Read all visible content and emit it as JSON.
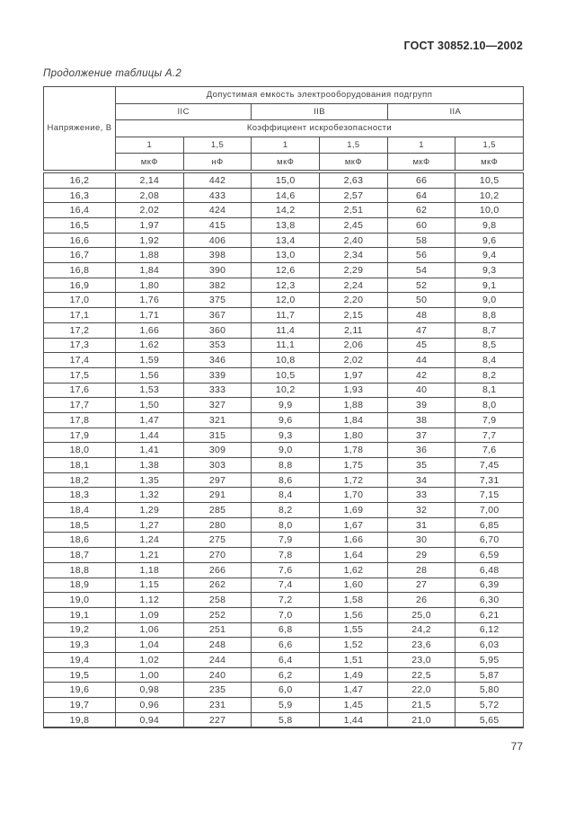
{
  "page": {
    "doc_number": "ГОСТ 30852.10—2002",
    "caption": "Продолжение таблицы А.2",
    "page_number": "77"
  },
  "colors": {
    "background": "#ffffff",
    "text": "#3b3b3b",
    "border": "#4d4d4d"
  },
  "table": {
    "voltage_header": "Напряжение, В",
    "span_header": "Допустимая емкость электрооборудования подгрупп",
    "groups": [
      "IIC",
      "IIB",
      "IIA"
    ],
    "coefficient_header": "Коэффициент искробезопасности",
    "coefficients": [
      "1",
      "1,5",
      "1",
      "1,5",
      "1",
      "1,5"
    ],
    "units": [
      "мкФ",
      "нФ",
      "мкФ",
      "мкФ",
      "мкФ",
      "мкФ"
    ],
    "rows": [
      [
        "16,2",
        "2,14",
        "442",
        "15,0",
        "2,63",
        "66",
        "10,5"
      ],
      [
        "16,3",
        "2,08",
        "433",
        "14,6",
        "2,57",
        "64",
        "10,2"
      ],
      [
        "16,4",
        "2,02",
        "424",
        "14,2",
        "2,51",
        "62",
        "10,0"
      ],
      [
        "16,5",
        "1,97",
        "415",
        "13,8",
        "2,45",
        "60",
        "9,8"
      ],
      [
        "16,6",
        "1,92",
        "406",
        "13,4",
        "2,40",
        "58",
        "9,6"
      ],
      [
        "16,7",
        "1,88",
        "398",
        "13,0",
        "2,34",
        "56",
        "9,4"
      ],
      [
        "16,8",
        "1,84",
        "390",
        "12,6",
        "2,29",
        "54",
        "9,3"
      ],
      [
        "16,9",
        "1,80",
        "382",
        "12,3",
        "2,24",
        "52",
        "9,1"
      ],
      [
        "17,0",
        "1,76",
        "375",
        "12,0",
        "2,20",
        "50",
        "9,0"
      ],
      [
        "17,1",
        "1,71",
        "367",
        "11,7",
        "2,15",
        "48",
        "8,8"
      ],
      [
        "17,2",
        "1,66",
        "360",
        "11,4",
        "2,11",
        "47",
        "8,7"
      ],
      [
        "17,3",
        "1,62",
        "353",
        "11,1",
        "2,06",
        "45",
        "8,5"
      ],
      [
        "17,4",
        "1,59",
        "346",
        "10,8",
        "2,02",
        "44",
        "8,4"
      ],
      [
        "17,5",
        "1,56",
        "339",
        "10,5",
        "1,97",
        "42",
        "8,2"
      ],
      [
        "17,6",
        "1,53",
        "333",
        "10,2",
        "1,93",
        "40",
        "8,1"
      ],
      [
        "17,7",
        "1,50",
        "327",
        "9,9",
        "1,88",
        "39",
        "8,0"
      ],
      [
        "17,8",
        "1,47",
        "321",
        "9,6",
        "1,84",
        "38",
        "7,9"
      ],
      [
        "17,9",
        "1,44",
        "315",
        "9,3",
        "1,80",
        "37",
        "7,7"
      ],
      [
        "18,0",
        "1,41",
        "309",
        "9,0",
        "1,78",
        "36",
        "7,6"
      ],
      [
        "18,1",
        "1,38",
        "303",
        "8,8",
        "1,75",
        "35",
        "7,45"
      ],
      [
        "18,2",
        "1,35",
        "297",
        "8,6",
        "1,72",
        "34",
        "7,31"
      ],
      [
        "18,3",
        "1,32",
        "291",
        "8,4",
        "1,70",
        "33",
        "7,15"
      ],
      [
        "18,4",
        "1,29",
        "285",
        "8,2",
        "1,69",
        "32",
        "7,00"
      ],
      [
        "18,5",
        "1,27",
        "280",
        "8,0",
        "1,67",
        "31",
        "6,85"
      ],
      [
        "18,6",
        "1,24",
        "275",
        "7,9",
        "1,66",
        "30",
        "6,70"
      ],
      [
        "18,7",
        "1,21",
        "270",
        "7,8",
        "1,64",
        "29",
        "6,59"
      ],
      [
        "18,8",
        "1,18",
        "266",
        "7,6",
        "1,62",
        "28",
        "6,48"
      ],
      [
        "18,9",
        "1,15",
        "262",
        "7,4",
        "1,60",
        "27",
        "6,39"
      ],
      [
        "19,0",
        "1,12",
        "258",
        "7,2",
        "1,58",
        "26",
        "6,30"
      ],
      [
        "19,1",
        "1,09",
        "252",
        "7,0",
        "1,56",
        "25,0",
        "6,21"
      ],
      [
        "19,2",
        "1,06",
        "251",
        "6,8",
        "1,55",
        "24,2",
        "6,12"
      ],
      [
        "19,3",
        "1,04",
        "248",
        "6,6",
        "1,52",
        "23,6",
        "6,03"
      ],
      [
        "19,4",
        "1,02",
        "244",
        "6,4",
        "1,51",
        "23,0",
        "5,95"
      ],
      [
        "19,5",
        "1,00",
        "240",
        "6,2",
        "1,49",
        "22,5",
        "5,87"
      ],
      [
        "19,6",
        "0,98",
        "235",
        "6,0",
        "1,47",
        "22,0",
        "5,80"
      ],
      [
        "19,7",
        "0,96",
        "231",
        "5,9",
        "1,45",
        "21,5",
        "5,72"
      ],
      [
        "19,8",
        "0,94",
        "227",
        "5,8",
        "1,44",
        "21,0",
        "5,65"
      ]
    ]
  }
}
